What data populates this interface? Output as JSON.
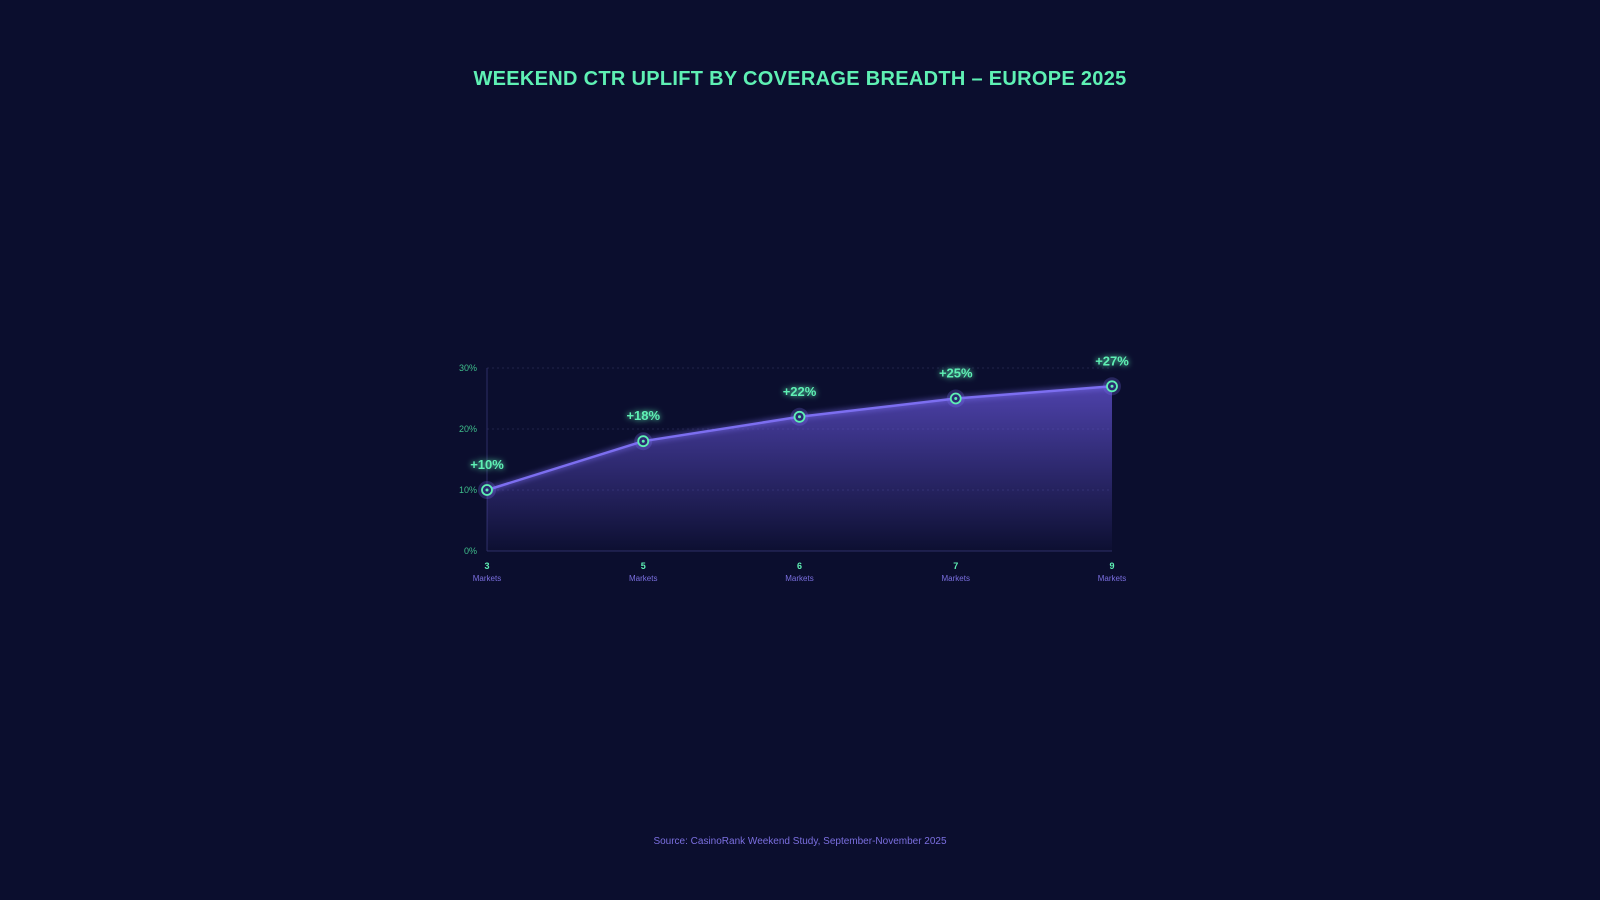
{
  "chart_data": {
    "type": "area",
    "title": "WEEKEND CTR UPLIFT BY COVERAGE BREADTH – EUROPE 2025",
    "categories": [
      "3",
      "5",
      "6",
      "7",
      "9"
    ],
    "category_sublabel": "Markets",
    "values": [
      10,
      18,
      22,
      25,
      27
    ],
    "data_labels": [
      "+10%",
      "+18%",
      "+22%",
      "+25%",
      "+27%"
    ],
    "ylim": [
      0,
      30
    ],
    "yticks": [
      0,
      10,
      20,
      30
    ],
    "ytick_labels": [
      "0%",
      "10%",
      "20%",
      "30%"
    ],
    "xlabel": "",
    "ylabel": "",
    "grid": true,
    "colors": {
      "background": "#0b0e2e",
      "line": "#7b6ef0",
      "accent": "#5ef0b4",
      "sublabel": "#7b6fe0"
    }
  },
  "source": "Source: CasinoRank Weekend Study, September-November 2025"
}
